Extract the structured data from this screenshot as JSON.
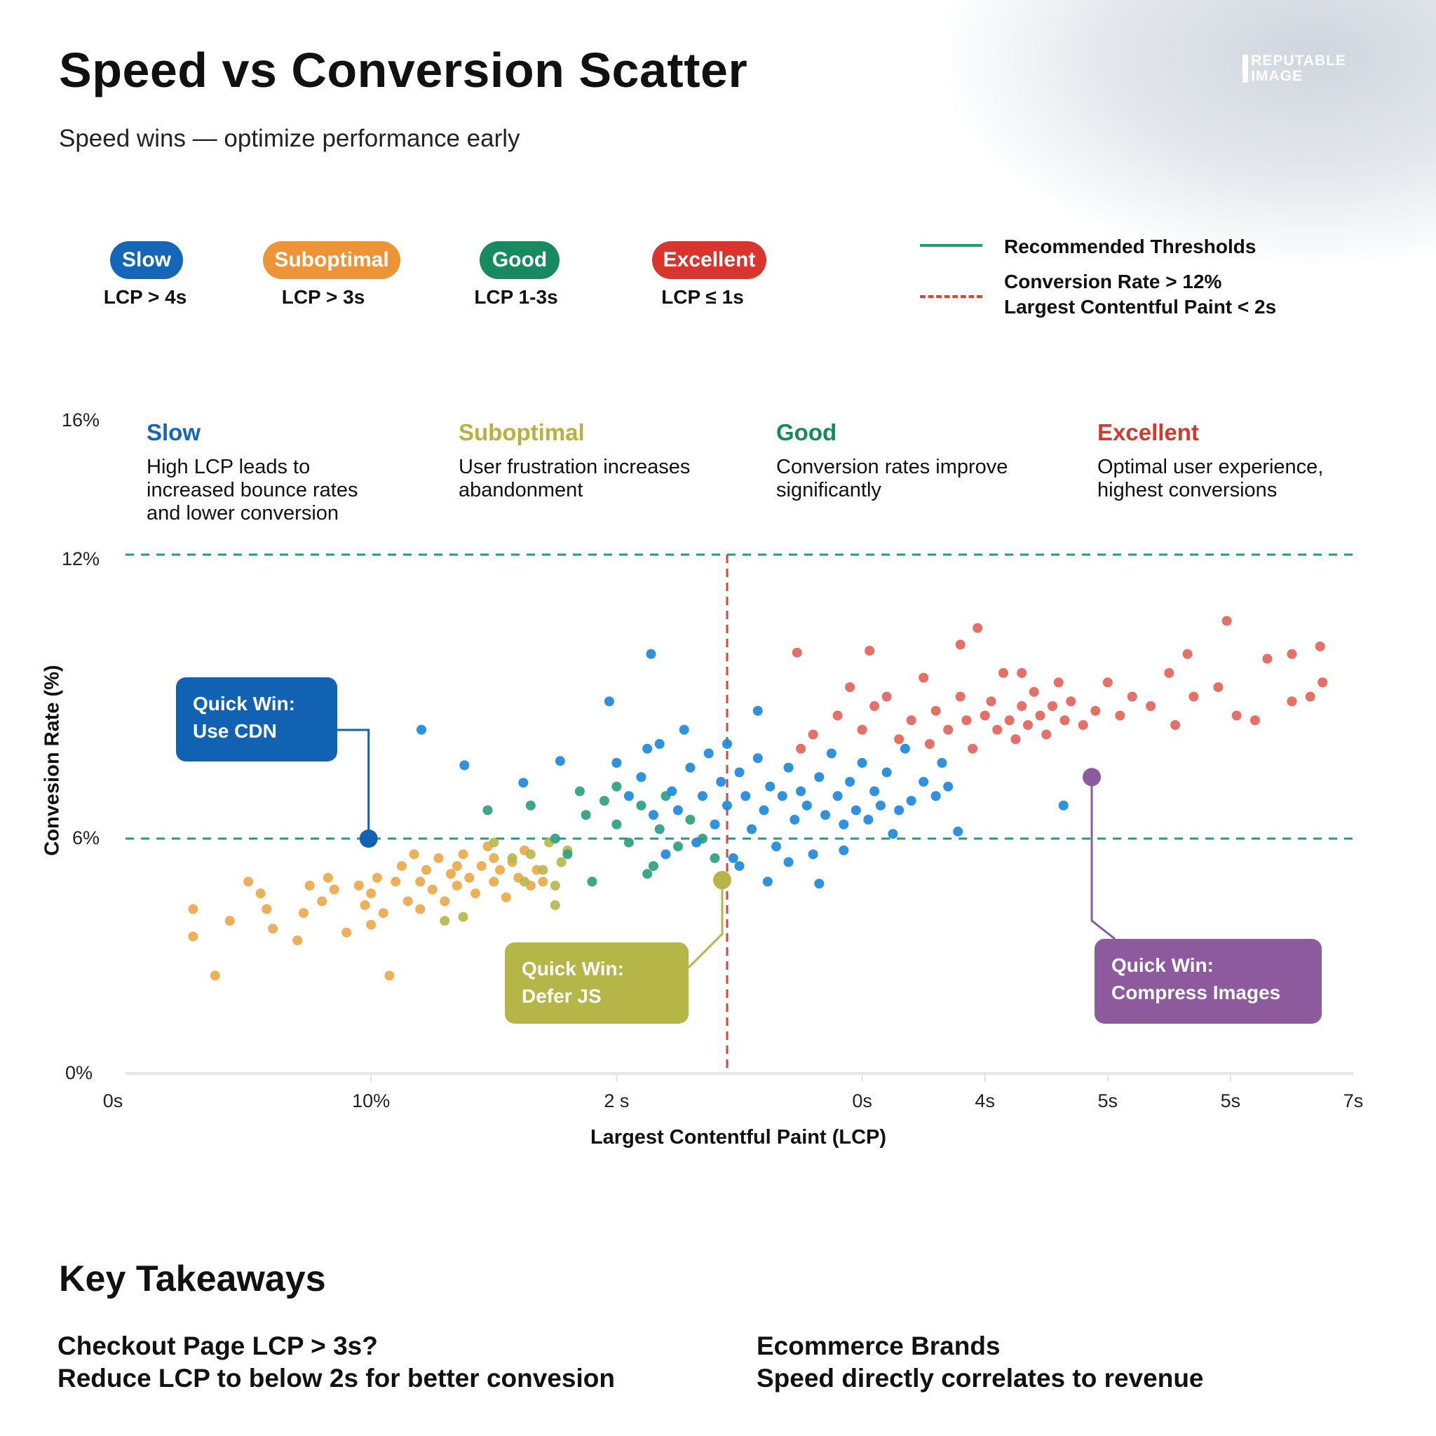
{
  "header": {
    "title": "Speed vs Conversion Scatter",
    "subtitle": "Speed wins — optimize performance early",
    "logo_text": [
      "REPUTABLE",
      "IMAGE"
    ]
  },
  "badges": [
    {
      "label": "Slow",
      "sub": "LCP > 4s",
      "color": "#1565B8"
    },
    {
      "label": "Suboptimal",
      "sub": "LCP > 3s",
      "color": "#EE9438"
    },
    {
      "label": "Good",
      "sub": "LCP 1-3s",
      "color": "#178A5F"
    },
    {
      "label": "Excellent",
      "sub": "LCP ≤ 1s",
      "color": "#D8352E"
    }
  ],
  "legend": {
    "solid": {
      "label": "Recommended Thresholds",
      "color": "#1F9E72"
    },
    "dashed": {
      "lines": [
        "Conversion Rate > 12%",
        "Largest Contentful Paint < 2s"
      ],
      "color": "#D9453A"
    }
  },
  "categories": [
    {
      "title": "Slow",
      "desc": "High LCP leads to increased bounce rates and lower conversion",
      "color": "#1565B8"
    },
    {
      "title": "Suboptimal",
      "desc": "User frustration increases abandonment",
      "color": "#B5B23E"
    },
    {
      "title": "Good",
      "desc": "Conversion rates improve significantly",
      "color": "#168A5A"
    },
    {
      "title": "Excellent",
      "desc": "Optimal user experience, highest conversions",
      "color": "#D23A2E"
    }
  ],
  "chart_data": {
    "type": "scatter",
    "xlabel": "Largest Contentful Paint (LCP)",
    "ylabel": "Convesion Rate  (%)",
    "xlim": [
      0,
      10
    ],
    "ylim": [
      0,
      16
    ],
    "x_ticks": [
      {
        "value": 0,
        "label": "0s"
      },
      {
        "value": 2,
        "label": "10%"
      },
      {
        "value": 4,
        "label": "2 s"
      },
      {
        "value": 6,
        "label": "0s"
      },
      {
        "value": 7,
        "label": "4s"
      },
      {
        "value": 8,
        "label": "5s"
      },
      {
        "value": 9,
        "label": "5s"
      },
      {
        "value": 10,
        "label": "7s"
      }
    ],
    "y_ticks": [
      {
        "value": 0,
        "label": "0%"
      },
      {
        "value": 6,
        "label": "6%"
      },
      {
        "value": 12,
        "label": "12%"
      },
      {
        "value": 16,
        "label": "16%"
      }
    ],
    "y_scale": "piecewise-nonlinear",
    "thresholds": {
      "horizontal": [
        12,
        6
      ],
      "horizontal_color": "#1F9E72",
      "vertical": 4.9,
      "vertical_color": "#D9453A"
    },
    "grid": false,
    "series": [
      {
        "color": "#E9A94B",
        "points": [
          [
            0.55,
            4.2
          ],
          [
            0.55,
            3.5
          ],
          [
            0.73,
            2.5
          ],
          [
            0.85,
            3.9
          ],
          [
            1.0,
            4.9
          ],
          [
            1.1,
            4.6
          ],
          [
            1.15,
            4.2
          ],
          [
            1.2,
            3.7
          ],
          [
            1.4,
            3.4
          ],
          [
            1.45,
            4.1
          ],
          [
            1.5,
            4.8
          ],
          [
            1.6,
            4.4
          ],
          [
            1.65,
            5.0
          ],
          [
            1.8,
            3.6
          ],
          [
            1.9,
            4.8
          ],
          [
            1.95,
            4.3
          ],
          [
            2.0,
            4.6
          ],
          [
            2.05,
            5.0
          ],
          [
            2.1,
            4.1
          ],
          [
            2.15,
            2.5
          ],
          [
            2.2,
            4.9
          ],
          [
            2.25,
            5.3
          ],
          [
            2.3,
            4.4
          ],
          [
            2.35,
            5.6
          ],
          [
            2.4,
            4.9
          ],
          [
            2.45,
            5.2
          ],
          [
            2.5,
            4.7
          ],
          [
            2.55,
            5.5
          ],
          [
            2.6,
            4.4
          ],
          [
            2.65,
            5.1
          ],
          [
            2.7,
            4.8
          ],
          [
            2.75,
            5.6
          ],
          [
            2.8,
            5.0
          ],
          [
            2.85,
            4.6
          ],
          [
            2.9,
            5.3
          ],
          [
            2.95,
            5.8
          ],
          [
            3.0,
            4.9
          ],
          [
            3.05,
            5.2
          ],
          [
            3.1,
            4.5
          ],
          [
            3.15,
            5.4
          ],
          [
            3.2,
            5.0
          ],
          [
            3.25,
            5.7
          ],
          [
            3.3,
            4.8
          ],
          [
            3.35,
            5.2
          ],
          [
            3.4,
            4.9
          ],
          [
            2.0,
            3.8
          ],
          [
            2.4,
            4.2
          ],
          [
            2.7,
            5.3
          ],
          [
            3.0,
            5.5
          ],
          [
            1.7,
            4.7
          ]
        ]
      },
      {
        "color": "#B5B84C",
        "points": [
          [
            3.15,
            5.5
          ],
          [
            3.25,
            4.9
          ],
          [
            3.3,
            5.6
          ],
          [
            3.4,
            5.2
          ],
          [
            3.45,
            5.9
          ],
          [
            3.5,
            4.8
          ],
          [
            3.55,
            5.4
          ],
          [
            3.6,
            5.7
          ],
          [
            2.75,
            4.0
          ],
          [
            3.5,
            4.3
          ],
          [
            3.0,
            5.9
          ],
          [
            2.6,
            3.9
          ]
        ]
      },
      {
        "color": "#2E9E80",
        "points": [
          [
            2.95,
            6.6
          ],
          [
            3.3,
            6.7
          ],
          [
            3.5,
            6.0
          ],
          [
            3.6,
            5.6
          ],
          [
            3.75,
            6.5
          ],
          [
            3.8,
            4.9
          ],
          [
            3.9,
            6.8
          ],
          [
            4.0,
            6.3
          ],
          [
            4.1,
            5.9
          ],
          [
            4.2,
            6.7
          ],
          [
            4.3,
            5.3
          ],
          [
            4.35,
            6.2
          ],
          [
            4.4,
            6.9
          ],
          [
            4.5,
            5.8
          ],
          [
            4.6,
            6.4
          ],
          [
            4.7,
            6.0
          ],
          [
            4.8,
            5.5
          ],
          [
            3.7,
            7.0
          ],
          [
            4.0,
            7.1
          ],
          [
            4.25,
            5.1
          ]
        ]
      },
      {
        "color": "#1E88DB",
        "points": [
          [
            4.0,
            7.6
          ],
          [
            4.1,
            6.9
          ],
          [
            4.2,
            7.3
          ],
          [
            4.3,
            6.5
          ],
          [
            4.35,
            8.0
          ],
          [
            4.45,
            7.0
          ],
          [
            4.5,
            6.6
          ],
          [
            4.55,
            8.3
          ],
          [
            4.6,
            7.5
          ],
          [
            4.7,
            6.9
          ],
          [
            4.75,
            7.8
          ],
          [
            4.8,
            6.3
          ],
          [
            4.85,
            7.2
          ],
          [
            4.9,
            6.7
          ],
          [
            4.95,
            5.5
          ],
          [
            5.0,
            7.4
          ],
          [
            5.05,
            6.9
          ],
          [
            5.1,
            6.2
          ],
          [
            5.15,
            7.7
          ],
          [
            5.2,
            6.6
          ],
          [
            5.25,
            7.1
          ],
          [
            5.3,
            5.8
          ],
          [
            5.35,
            6.9
          ],
          [
            5.4,
            7.5
          ],
          [
            5.45,
            6.4
          ],
          [
            5.5,
            7.0
          ],
          [
            5.55,
            6.7
          ],
          [
            5.6,
            5.6
          ],
          [
            5.65,
            7.3
          ],
          [
            5.7,
            6.5
          ],
          [
            5.75,
            7.8
          ],
          [
            5.8,
            6.9
          ],
          [
            5.85,
            6.3
          ],
          [
            5.9,
            7.2
          ],
          [
            5.95,
            6.6
          ],
          [
            6.0,
            7.6
          ],
          [
            6.05,
            6.4
          ],
          [
            6.1,
            7.0
          ],
          [
            6.15,
            6.7
          ],
          [
            6.2,
            7.4
          ],
          [
            6.3,
            6.6
          ],
          [
            6.35,
            7.9
          ],
          [
            6.4,
            6.8
          ],
          [
            6.5,
            7.2
          ],
          [
            6.6,
            6.9
          ],
          [
            6.65,
            7.6
          ],
          [
            6.7,
            7.1
          ],
          [
            4.4,
            5.6
          ],
          [
            4.65,
            5.9
          ],
          [
            5.0,
            5.3
          ],
          [
            5.4,
            5.4
          ],
          [
            5.85,
            5.7
          ],
          [
            6.25,
            6.1
          ],
          [
            4.25,
            7.9
          ],
          [
            4.9,
            8.0
          ],
          [
            3.94,
            8.9
          ],
          [
            4.28,
            9.9
          ],
          [
            2.41,
            8.3
          ],
          [
            2.76,
            7.55
          ],
          [
            3.24,
            7.18
          ],
          [
            3.54,
            7.64
          ],
          [
            5.15,
            8.7
          ],
          [
            6.78,
            6.15
          ],
          [
            7.64,
            6.7
          ],
          [
            5.65,
            4.85
          ],
          [
            5.23,
            4.9
          ]
        ]
      },
      {
        "color": "#E2645A",
        "points": [
          [
            5.5,
            7.9
          ],
          [
            5.6,
            8.2
          ],
          [
            5.8,
            8.6
          ],
          [
            5.9,
            9.2
          ],
          [
            6.0,
            8.3
          ],
          [
            6.1,
            8.8
          ],
          [
            6.2,
            9.0
          ],
          [
            6.3,
            8.1
          ],
          [
            6.4,
            8.5
          ],
          [
            6.5,
            9.4
          ],
          [
            6.55,
            8.0
          ],
          [
            6.6,
            8.7
          ],
          [
            6.7,
            8.3
          ],
          [
            6.8,
            9.0
          ],
          [
            6.85,
            8.5
          ],
          [
            6.9,
            7.9
          ],
          [
            7.0,
            8.6
          ],
          [
            7.05,
            8.9
          ],
          [
            7.1,
            8.3
          ],
          [
            7.15,
            9.5
          ],
          [
            7.2,
            8.5
          ],
          [
            7.25,
            8.1
          ],
          [
            7.3,
            8.8
          ],
          [
            7.35,
            8.4
          ],
          [
            7.4,
            9.1
          ],
          [
            7.45,
            8.6
          ],
          [
            7.5,
            8.2
          ],
          [
            7.55,
            8.8
          ],
          [
            7.6,
            9.3
          ],
          [
            7.65,
            8.5
          ],
          [
            7.7,
            8.9
          ],
          [
            7.8,
            8.4
          ],
          [
            7.9,
            8.7
          ],
          [
            8.0,
            9.3
          ],
          [
            8.1,
            8.6
          ],
          [
            8.2,
            9.0
          ],
          [
            8.35,
            8.8
          ],
          [
            8.5,
            9.5
          ],
          [
            8.55,
            8.4
          ],
          [
            8.7,
            9.0
          ],
          [
            8.9,
            9.2
          ],
          [
            9.05,
            8.6
          ],
          [
            9.3,
            9.8
          ],
          [
            9.5,
            8.9
          ],
          [
            9.65,
            9.0
          ],
          [
            9.75,
            9.3
          ],
          [
            5.47,
            9.93
          ],
          [
            6.06,
            9.97
          ],
          [
            6.94,
            10.45
          ],
          [
            8.97,
            10.6
          ],
          [
            9.73,
            10.06
          ],
          [
            9.5,
            9.9
          ],
          [
            8.65,
            9.9
          ],
          [
            6.8,
            10.1
          ],
          [
            7.3,
            9.5
          ],
          [
            9.2,
            8.5
          ]
        ]
      }
    ],
    "annotations": [
      {
        "lines": [
          "Quick Win:",
          "Use CDN"
        ],
        "point": [
          1.98,
          6.0
        ],
        "color": "#1262B3"
      },
      {
        "lines": [
          "Quick Win:",
          "Defer JS"
        ],
        "point": [
          4.86,
          4.94
        ],
        "color": "#B5B548"
      },
      {
        "lines": [
          "Quick Win:",
          "Compress Images"
        ],
        "point": [
          7.87,
          7.3
        ],
        "color": "#8E5A9E"
      }
    ]
  },
  "takeaways": {
    "title": "Key Takeaways",
    "items": [
      {
        "lines": [
          "Checkout Page LCP > 3s?",
          "Reduce LCP to below 2s for better convesion"
        ]
      },
      {
        "lines": [
          "Ecommerce Brands",
          "Speed directly correlates to revenue"
        ]
      }
    ]
  }
}
